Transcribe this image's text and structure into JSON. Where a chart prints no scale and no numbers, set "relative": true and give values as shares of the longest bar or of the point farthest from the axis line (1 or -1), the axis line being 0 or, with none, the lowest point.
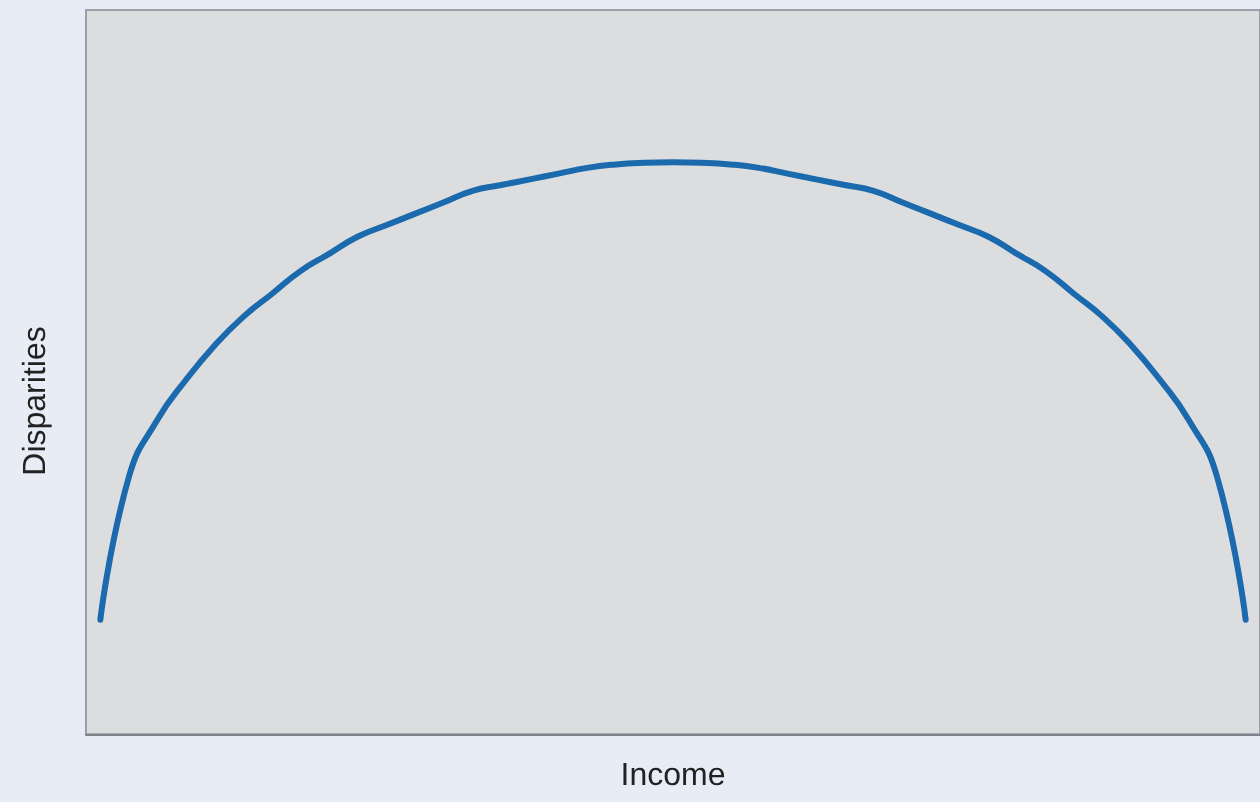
{
  "chart_data": {
    "type": "line",
    "xlabel": "Income",
    "ylabel": "Disparities",
    "relative": true,
    "grid": false,
    "marker": "none",
    "line_style": "solid",
    "categories": [
      null,
      null,
      null,
      null,
      null,
      null,
      null,
      null,
      null,
      null,
      null,
      null,
      null,
      null,
      null,
      null,
      null,
      null,
      null,
      null,
      null,
      null,
      null,
      null,
      null,
      null,
      null,
      null,
      null,
      null,
      null,
      null,
      null,
      null,
      null,
      null,
      null,
      null,
      null,
      null,
      null
    ],
    "series": [
      {
        "color": "#1a6aad",
        "values": [
          0.2,
          0.45,
          0.55,
          0.62,
          0.68,
          0.73,
          0.77,
          0.81,
          0.84,
          0.87,
          0.89,
          0.91,
          0.93,
          0.95,
          0.96,
          0.97,
          0.98,
          0.99,
          0.996,
          0.999,
          1,
          0.999,
          0.996,
          0.99,
          0.98,
          0.97,
          0.96,
          0.95,
          0.93,
          0.91,
          0.89,
          0.87,
          0.84,
          0.81,
          0.77,
          0.73,
          0.68,
          0.62,
          0.55,
          0.45,
          0.2
        ]
      }
    ]
  }
}
